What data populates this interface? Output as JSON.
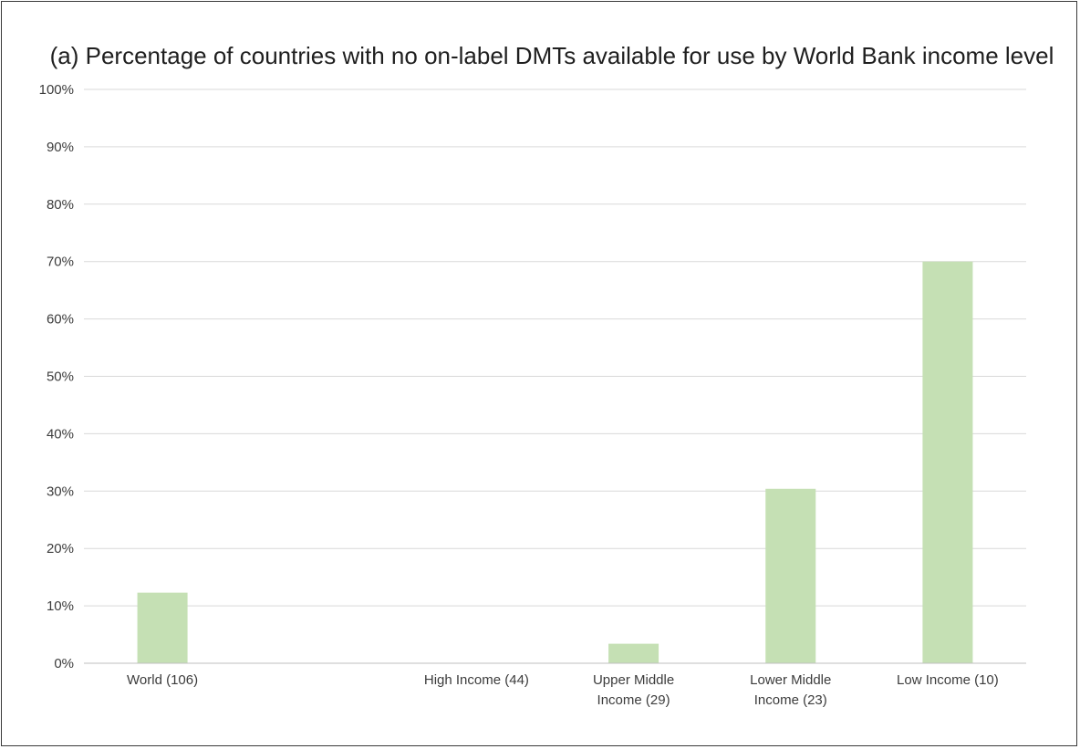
{
  "chart_data": {
    "type": "bar",
    "title": "(a) Percentage of countries with no on-label DMTs available for use by World Bank income level",
    "categories": [
      [
        "World (106)"
      ],
      [
        ""
      ],
      [
        "High Income (44)"
      ],
      [
        "Upper Middle",
        "Income (29)"
      ],
      [
        "Lower Middle",
        "Income (23)"
      ],
      [
        "Low Income (10)"
      ]
    ],
    "values": [
      12.3,
      null,
      0,
      3.4,
      30.4,
      70
    ],
    "ylim": [
      0,
      100
    ],
    "yticks": [
      "0%",
      "10%",
      "20%",
      "30%",
      "40%",
      "50%",
      "60%",
      "70%",
      "80%",
      "90%",
      "100%"
    ],
    "grid": true,
    "colors": {
      "bar": "#c5e0b4",
      "grid": "#d9d9d9",
      "axis": "#bfbfbf"
    }
  }
}
